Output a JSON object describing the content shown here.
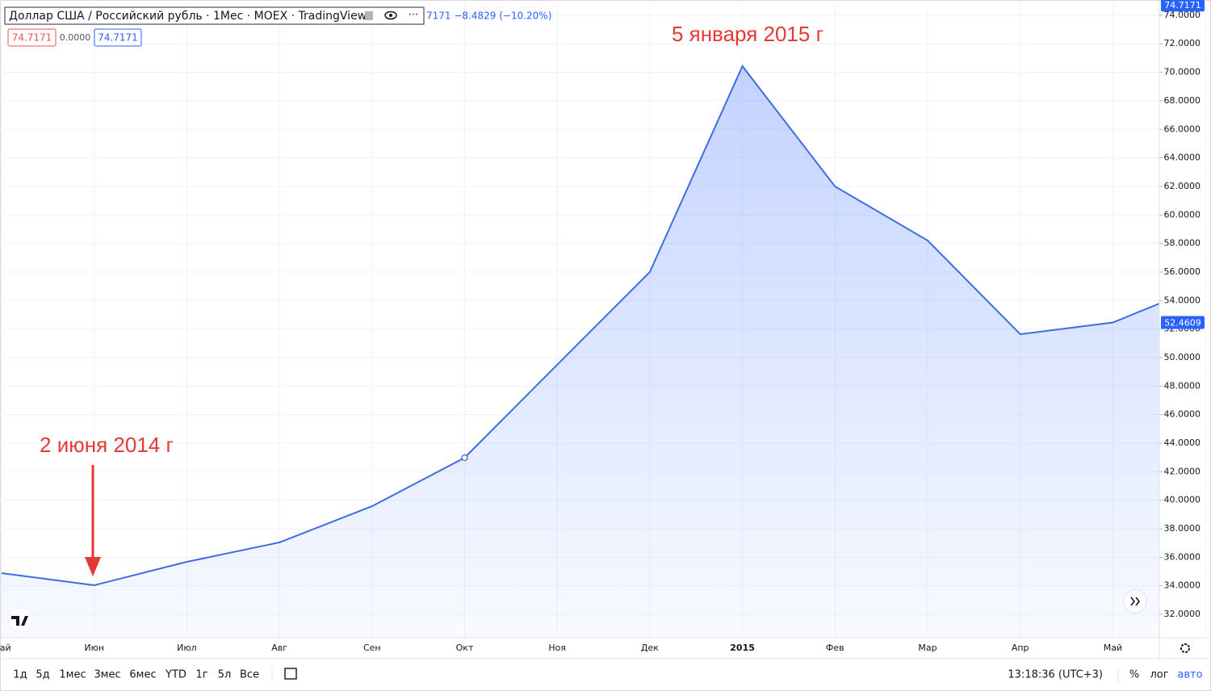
{
  "chart_data": {
    "type": "area",
    "title": "Доллар США / Российский рубль · 1Мес · MOEX · TradingView",
    "subtitle": "7171 −8.4829 (−10.20%)",
    "legend_values": [
      "74.7171",
      "0.0000",
      "74.7171"
    ],
    "annotations": [
      "5 января 2015 г",
      "2 июня 2014 г"
    ],
    "categories": [
      "Май",
      "Июн",
      "Июл",
      "Авг",
      "Сен",
      "Окт",
      "Ноя",
      "Дек",
      "2015",
      "Фев",
      "Мар",
      "Апр",
      "Май",
      null
    ],
    "series": [
      {
        "name": "USD/RUB",
        "color": "#3d6de0",
        "values": [
          34.89,
          34.04,
          35.68,
          37.04,
          39.58,
          42.98,
          49.5,
          56.0,
          70.43,
          62.0,
          58.21,
          51.64,
          52.4609,
          55.1
        ]
      }
    ],
    "price_tags": [
      74.7171,
      52.4609
    ],
    "ylim": [
      30.36,
      75.07
    ],
    "yticks": [
      {
        "value": 32,
        "label": "32.0000"
      },
      {
        "value": 34,
        "label": "34.0000"
      },
      {
        "value": 36,
        "label": "36.0000"
      },
      {
        "value": 38,
        "label": "38.0000"
      },
      {
        "value": 40,
        "label": "40.0000"
      },
      {
        "value": 42,
        "label": "42.0000"
      },
      {
        "value": 44,
        "label": "44.0000"
      },
      {
        "value": 46,
        "label": "46.0000"
      },
      {
        "value": 48,
        "label": "48.0000"
      },
      {
        "value": 50,
        "label": "50.0000"
      },
      {
        "value": 52,
        "label": "52.0000"
      },
      {
        "value": 54,
        "label": "54.0000"
      },
      {
        "value": 56,
        "label": "56.0000"
      },
      {
        "value": 58,
        "label": "58.0000"
      },
      {
        "value": 60,
        "label": "60.0000"
      },
      {
        "value": 62,
        "label": "62.0000"
      },
      {
        "value": 64,
        "label": "64.0000"
      },
      {
        "value": 66,
        "label": "66.0000"
      },
      {
        "value": 68,
        "label": "68.0000"
      },
      {
        "value": 70,
        "label": "70.0000"
      },
      {
        "value": 72,
        "label": "72.0000"
      },
      {
        "value": 74,
        "label": "74.0000"
      }
    ],
    "grid": true
  },
  "toolbar": {
    "ranges": [
      "1д",
      "5д",
      "1мес",
      "3мес",
      "6мес",
      "YTD",
      "1г",
      "5л",
      "Все"
    ],
    "time": "13:18:36 (UTC+3)",
    "percent": "%",
    "log": "лог",
    "auto": "авто"
  }
}
